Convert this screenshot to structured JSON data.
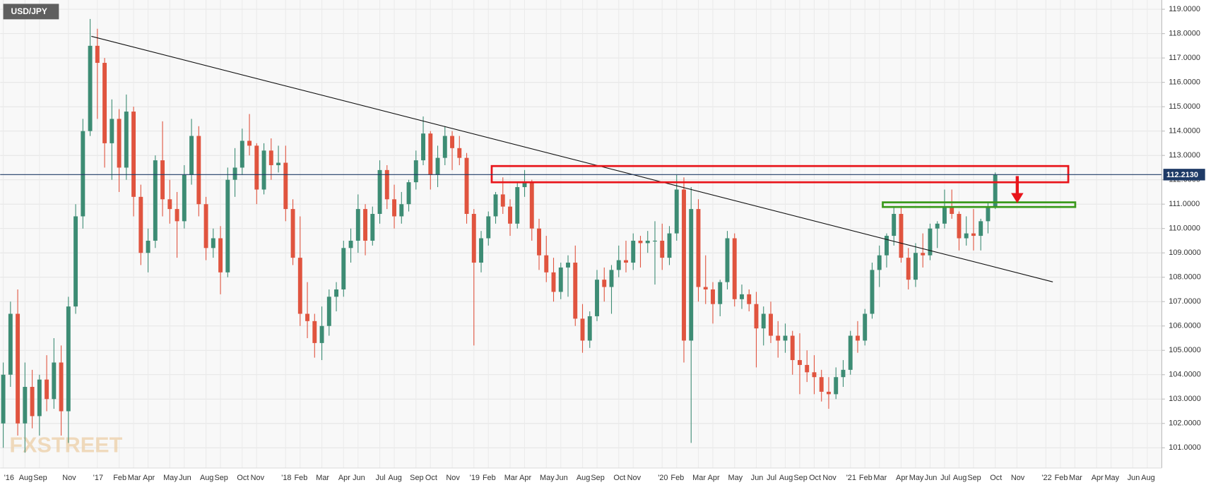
{
  "chart_data": {
    "type": "candlestick",
    "title": "USD/JPY",
    "watermark": "FXSTREET",
    "grid": true,
    "ylim": [
      100.17,
      119.38
    ],
    "yticks": [
      {
        "value": 101,
        "label": "101.0000"
      },
      {
        "value": 102,
        "label": "102.0000"
      },
      {
        "value": 103,
        "label": "103.0000"
      },
      {
        "value": 104,
        "label": "104.0000"
      },
      {
        "value": 105,
        "label": "105.0000"
      },
      {
        "value": 106,
        "label": "106.0000"
      },
      {
        "value": 107,
        "label": "107.0000"
      },
      {
        "value": 108,
        "label": "108.0000"
      },
      {
        "value": 109,
        "label": "109.0000"
      },
      {
        "value": 110,
        "label": "110.0000"
      },
      {
        "value": 111,
        "label": "111.0000"
      },
      {
        "value": 112,
        "label": "112.0000"
      },
      {
        "value": 113,
        "label": "113.0000"
      },
      {
        "value": 114,
        "label": "114.0000"
      },
      {
        "value": 115,
        "label": "115.0000"
      },
      {
        "value": 116,
        "label": "116.0000"
      },
      {
        "value": 117,
        "label": "117.0000"
      },
      {
        "value": 118,
        "label": "118.0000"
      },
      {
        "value": 119,
        "label": "119.0000"
      }
    ],
    "last_price": {
      "value": 112.213,
      "label": "112.2130"
    },
    "up_color": "#3d8c74",
    "down_color": "#e0543f",
    "categories": [
      "'16",
      null,
      null,
      "Aug",
      null,
      "Sep",
      null,
      null,
      null,
      "Nov",
      null,
      null,
      null,
      "'17",
      null,
      null,
      "Feb",
      null,
      "Mar",
      null,
      "Apr",
      null,
      null,
      "May",
      null,
      "Jun",
      null,
      null,
      "Aug",
      null,
      "Sep",
      null,
      null,
      "Oct",
      null,
      "Nov",
      null,
      null,
      null,
      "'18",
      null,
      "Feb",
      null,
      null,
      "Mar",
      null,
      null,
      "Apr",
      null,
      "Jun",
      null,
      null,
      "Jul",
      null,
      "Aug",
      null,
      null,
      "Sep",
      null,
      "Oct",
      null,
      null,
      "Nov",
      null,
      null,
      "'19",
      null,
      "Feb",
      null,
      null,
      "Mar",
      null,
      "Apr",
      null,
      null,
      "May",
      null,
      "Jun",
      null,
      null,
      "Aug",
      null,
      "Sep",
      null,
      null,
      "Oct",
      null,
      "Nov",
      null,
      null,
      null,
      "'20",
      null,
      "Feb",
      null,
      null,
      "Mar",
      null,
      "Apr",
      null,
      null,
      "May",
      null,
      null,
      "Jun",
      null,
      "Jul",
      null,
      "Aug",
      null,
      "Sep",
      null,
      "Oct",
      null,
      "Nov",
      null,
      null,
      "'21",
      null,
      "Feb",
      null,
      "Mar",
      null,
      null,
      "Apr",
      null,
      "May",
      null,
      "Jun",
      null,
      "Jul",
      null,
      "Aug",
      null,
      "Sep",
      null,
      null,
      "Oct",
      null,
      null,
      "Nov",
      null,
      null,
      null,
      "'22",
      null,
      "Feb",
      null,
      "Mar",
      null,
      null,
      "Apr",
      null,
      "May",
      null,
      null,
      "Jun",
      null,
      "Aug",
      null
    ],
    "series": [
      {
        "name": "USD/JPY",
        "values": [
          [
            102.0,
            104.5,
            101.0,
            104.0
          ],
          [
            104.0,
            107.0,
            103.5,
            106.5
          ],
          [
            106.5,
            107.5,
            101.5,
            102.0
          ],
          [
            102.0,
            104.5,
            100.8,
            103.5
          ],
          [
            103.5,
            104.2,
            101.8,
            102.3
          ],
          [
            102.3,
            104.0,
            101.5,
            103.8
          ],
          [
            103.8,
            104.8,
            102.5,
            103.0
          ],
          [
            103.0,
            105.5,
            102.6,
            104.5
          ],
          [
            104.5,
            105.2,
            101.5,
            102.5
          ],
          [
            102.5,
            107.2,
            101.2,
            106.8
          ],
          [
            106.8,
            111.0,
            106.5,
            110.5
          ],
          [
            110.5,
            114.5,
            110.0,
            114.0
          ],
          [
            114.0,
            118.6,
            113.8,
            117.5
          ],
          [
            117.5,
            118.2,
            114.5,
            116.8
          ],
          [
            116.8,
            117.0,
            112.5,
            113.5
          ],
          [
            113.5,
            115.3,
            112.0,
            114.5
          ],
          [
            114.5,
            114.9,
            111.5,
            112.5
          ],
          [
            112.5,
            115.5,
            112.0,
            114.8
          ],
          [
            114.8,
            115.0,
            110.5,
            111.3
          ],
          [
            111.3,
            111.8,
            108.5,
            109.0
          ],
          [
            109.0,
            110.0,
            108.2,
            109.5
          ],
          [
            109.5,
            113.0,
            109.2,
            112.8
          ],
          [
            112.8,
            114.4,
            110.5,
            111.2
          ],
          [
            111.2,
            112.0,
            110.2,
            110.8
          ],
          [
            110.8,
            111.5,
            108.8,
            110.3
          ],
          [
            110.3,
            112.6,
            110.0,
            112.2
          ],
          [
            112.2,
            114.5,
            111.8,
            113.8
          ],
          [
            113.8,
            114.2,
            110.5,
            111.0
          ],
          [
            111.0,
            111.3,
            108.7,
            109.2
          ],
          [
            109.2,
            110.0,
            108.8,
            109.6
          ],
          [
            109.6,
            110.1,
            107.3,
            108.2
          ],
          [
            108.2,
            112.5,
            108.0,
            112.0
          ],
          [
            112.0,
            113.3,
            111.3,
            112.5
          ],
          [
            112.5,
            114.1,
            112.2,
            113.6
          ],
          [
            113.6,
            114.7,
            113.0,
            113.4
          ],
          [
            113.4,
            113.5,
            111.0,
            111.6
          ],
          [
            111.6,
            113.5,
            111.4,
            113.2
          ],
          [
            113.2,
            113.7,
            112.0,
            112.6
          ],
          [
            112.6,
            113.4,
            112.3,
            112.7
          ],
          [
            112.7,
            113.4,
            110.3,
            110.8
          ],
          [
            110.8,
            111.2,
            108.5,
            108.8
          ],
          [
            108.8,
            110.5,
            106.0,
            106.5
          ],
          [
            106.5,
            107.8,
            105.5,
            106.2
          ],
          [
            106.2,
            106.5,
            104.7,
            105.3
          ],
          [
            105.3,
            106.8,
            104.6,
            106.0
          ],
          [
            106.0,
            107.5,
            105.6,
            107.2
          ],
          [
            107.2,
            107.8,
            106.6,
            107.5
          ],
          [
            107.5,
            109.5,
            107.2,
            109.2
          ],
          [
            109.2,
            110.0,
            108.6,
            109.5
          ],
          [
            109.5,
            111.4,
            109.0,
            110.8
          ],
          [
            110.8,
            111.0,
            108.9,
            109.5
          ],
          [
            109.5,
            110.9,
            109.3,
            110.6
          ],
          [
            110.6,
            112.8,
            110.2,
            112.4
          ],
          [
            112.4,
            112.6,
            110.8,
            111.2
          ],
          [
            111.2,
            111.8,
            110.0,
            110.5
          ],
          [
            110.5,
            111.5,
            110.2,
            111.0
          ],
          [
            111.0,
            112.0,
            110.7,
            111.9
          ],
          [
            111.9,
            113.2,
            111.6,
            112.8
          ],
          [
            112.8,
            114.6,
            112.6,
            113.9
          ],
          [
            113.9,
            114.0,
            111.6,
            112.2
          ],
          [
            112.2,
            113.4,
            111.7,
            112.9
          ],
          [
            112.9,
            114.2,
            112.6,
            113.8
          ],
          [
            113.8,
            114.0,
            112.4,
            113.3
          ],
          [
            113.3,
            113.8,
            112.6,
            112.9
          ],
          [
            112.9,
            113.1,
            110.2,
            110.6
          ],
          [
            110.6,
            110.8,
            105.2,
            108.6
          ],
          [
            108.6,
            109.9,
            108.2,
            109.6
          ],
          [
            109.6,
            110.7,
            109.3,
            110.5
          ],
          [
            110.5,
            111.5,
            110.2,
            111.4
          ],
          [
            111.4,
            112.1,
            110.6,
            110.9
          ],
          [
            110.9,
            111.2,
            109.7,
            110.2
          ],
          [
            110.2,
            111.9,
            110.0,
            111.7
          ],
          [
            111.7,
            112.4,
            111.3,
            111.9
          ],
          [
            111.9,
            112.0,
            109.5,
            110.0
          ],
          [
            110.0,
            110.4,
            108.3,
            108.9
          ],
          [
            108.9,
            109.7,
            107.8,
            108.2
          ],
          [
            108.2,
            108.8,
            107.0,
            107.4
          ],
          [
            107.4,
            108.6,
            107.1,
            108.4
          ],
          [
            108.4,
            108.9,
            107.2,
            108.6
          ],
          [
            108.6,
            109.3,
            106.0,
            106.3
          ],
          [
            106.3,
            106.9,
            104.9,
            105.4
          ],
          [
            105.4,
            106.6,
            105.1,
            106.4
          ],
          [
            106.4,
            108.3,
            106.2,
            107.9
          ],
          [
            107.9,
            108.4,
            107.0,
            107.6
          ],
          [
            107.6,
            108.5,
            106.5,
            108.3
          ],
          [
            108.3,
            109.3,
            108.0,
            108.7
          ],
          [
            108.7,
            109.5,
            108.2,
            108.6
          ],
          [
            108.6,
            109.8,
            108.3,
            109.5
          ],
          [
            109.5,
            109.7,
            108.4,
            109.4
          ],
          [
            109.4,
            109.9,
            109.0,
            109.5
          ],
          [
            109.5,
            110.3,
            107.7,
            109.5
          ],
          [
            109.5,
            110.2,
            108.3,
            108.8
          ],
          [
            108.8,
            110.1,
            108.5,
            109.8
          ],
          [
            109.8,
            112.2,
            109.5,
            111.6
          ],
          [
            111.6,
            112.1,
            104.5,
            105.4
          ],
          [
            105.4,
            111.7,
            101.2,
            110.8
          ],
          [
            110.8,
            111.2,
            107.0,
            107.6
          ],
          [
            107.6,
            108.9,
            106.9,
            107.5
          ],
          [
            107.5,
            107.8,
            106.1,
            106.9
          ],
          [
            106.9,
            107.9,
            106.4,
            107.8
          ],
          [
            107.8,
            109.9,
            107.5,
            109.6
          ],
          [
            109.6,
            109.8,
            106.8,
            107.1
          ],
          [
            107.1,
            107.7,
            106.7,
            107.3
          ],
          [
            107.3,
            107.5,
            106.6,
            106.9
          ],
          [
            106.9,
            107.4,
            104.3,
            105.9
          ],
          [
            105.9,
            106.8,
            105.2,
            106.5
          ],
          [
            106.5,
            107.0,
            105.3,
            105.6
          ],
          [
            105.6,
            106.2,
            104.7,
            105.4
          ],
          [
            105.4,
            106.1,
            104.9,
            105.6
          ],
          [
            105.6,
            105.8,
            104.0,
            104.6
          ],
          [
            104.6,
            105.7,
            103.2,
            104.4
          ],
          [
            104.4,
            105.0,
            103.7,
            104.1
          ],
          [
            104.1,
            104.8,
            103.2,
            103.9
          ],
          [
            103.9,
            104.2,
            102.9,
            103.3
          ],
          [
            103.3,
            103.9,
            102.6,
            103.2
          ],
          [
            103.2,
            104.3,
            103.0,
            103.9
          ],
          [
            103.9,
            104.6,
            103.5,
            104.2
          ],
          [
            104.2,
            105.8,
            104.0,
            105.6
          ],
          [
            105.6,
            106.2,
            104.9,
            105.4
          ],
          [
            105.4,
            106.7,
            105.2,
            106.5
          ],
          [
            106.5,
            108.6,
            106.3,
            108.3
          ],
          [
            108.3,
            109.3,
            107.6,
            108.9
          ],
          [
            108.9,
            109.8,
            108.4,
            109.7
          ],
          [
            109.7,
            110.9,
            109.3,
            110.6
          ],
          [
            110.6,
            110.9,
            108.6,
            108.8
          ],
          [
            108.8,
            109.2,
            107.5,
            107.9
          ],
          [
            107.9,
            109.4,
            107.6,
            109.0
          ],
          [
            109.0,
            109.8,
            108.4,
            108.9
          ],
          [
            108.9,
            110.2,
            108.7,
            110.0
          ],
          [
            110.0,
            110.3,
            109.2,
            110.2
          ],
          [
            110.2,
            111.6,
            110.0,
            110.9
          ],
          [
            110.9,
            111.6,
            110.4,
            110.6
          ],
          [
            110.6,
            110.7,
            109.1,
            109.6
          ],
          [
            109.6,
            110.5,
            109.3,
            109.8
          ],
          [
            109.8,
            110.8,
            109.1,
            109.7
          ],
          [
            109.7,
            110.4,
            109.1,
            110.3
          ],
          [
            110.3,
            111.1,
            109.8,
            110.9
          ],
          [
            110.9,
            112.3,
            110.8,
            112.2
          ],
          null,
          null,
          null,
          null,
          null,
          null,
          null,
          null,
          null,
          null,
          null,
          null,
          null,
          null,
          null,
          null,
          null,
          null,
          null,
          null,
          null,
          null
        ]
      }
    ]
  }
}
